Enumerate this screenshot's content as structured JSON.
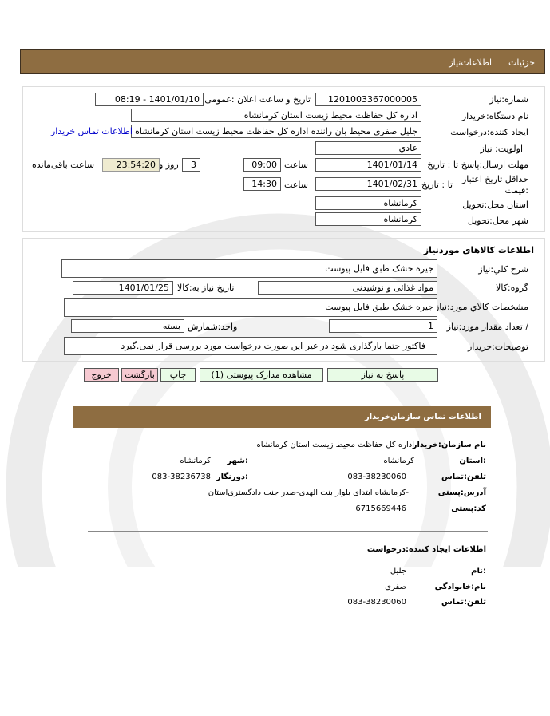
{
  "header": {
    "tab_details": "جزئیات",
    "tab_info": "اطلاعات‌نیاز"
  },
  "need": {
    "number_label": "شماره:نیاز",
    "number": "1201003367000005",
    "announce_label": "تاریخ و ساعت اعلان :عمومی",
    "announce": "1401/01/10 - 08:19",
    "buyer_label": "نام دستگاه:خریدار",
    "buyer": "اداره کل حفاظت محیط زیست استان کرمانشاه",
    "creator_label": "ایجاد کننده:درخواست",
    "creator": "جلیل  صفری محیط بان راننده اداره کل حفاظت محیط زیست استان کرمانشاه",
    "contact_link": "اطلاعات تماس خریدار",
    "priority_label": "اولویت: نیاز",
    "priority": "عادي",
    "deadline_label": "مهلت ارسال:پاسخ  تا : تاریخ",
    "deadline_date": "1401/01/14",
    "time_label": "ساعت",
    "deadline_time": "09:00",
    "days": "3",
    "days_label": "روز و",
    "remaining": "23:54:20",
    "remaining_label": "ساعت باقی‌مانده",
    "validity_label": "حداقل تاریخ اعتبار :قیمت",
    "validity_to": "تا : تاریخ",
    "validity_date": "1401/02/31",
    "validity_time": "14:30",
    "province_label": "استان محل:تحویل",
    "province": "کرمانشاه",
    "city_label": "شهر محل:تحویل",
    "city": "کرمانشاه"
  },
  "goods": {
    "title": "اطلاعات  کالاهاي موردنیاز",
    "desc_label": "شرح کلي:نیاز",
    "desc": "جیره خشک طبق فایل پیوست",
    "group_label": "گروه:کالا",
    "group": "مواد غذائی و نوشیدنی",
    "need_date_label": "تاریخ نیاز به:کالا",
    "need_date": "1401/01/25",
    "spec_label": "مشخصات کالاي مورد:نیاز",
    "spec": "جیره خشک طبق فایل پیوست",
    "qty_label": "/ تعداد مقدار مورد:نیاز",
    "qty": "1",
    "unit_label": "واحد:شمارش",
    "unit": "بسته",
    "notes_label": "توضیحات:خریدار",
    "notes": "فاکتور حتما بارگذاری شود در غیر این صورت درخواست مورد بررسی قرار نمی.گیرد"
  },
  "buttons": {
    "reply": "پاسخ به نیاز",
    "docs": "مشاهده مدارک پیوستی (1)",
    "print": "چاپ",
    "back": "بازگشت",
    "exit": "خروج"
  },
  "contact": {
    "title": "اطلاعات  تماس  سازمان‌خریدار",
    "org_label": "نام سازمان:خریدار",
    "org": "اداره کل حفاظت محیط زیست استان کرمانشاه",
    "province_label": ":استان",
    "province": "کرمانشاه",
    "city_label": ":شهر",
    "city": "کرمانشاه",
    "phone_label": "تلفن:تماس",
    "phone": "083-38230060",
    "fax_label": ":دورنگار",
    "fax": "083-38236738",
    "address_label": "آدرس:پستی",
    "address": "-کرمانشاه ابتدای بلوار بنت الهدی-صدر جنب دادگستری‌استان",
    "postal_label": "کد:پستی",
    "postal": "6715669446"
  },
  "creator": {
    "title": "اطلاعات ایجاد کننده:درخواست",
    "name_label": ":نام",
    "name": "جلیل",
    "family_label": "نام:خانوادگی",
    "family": "صفری",
    "phone_label": "تلفن:تماس",
    "phone": "083-38230060"
  },
  "colors": {
    "bar": "#8e6d41",
    "link": "#0000cc",
    "highlight": "#efebd0",
    "green_button": "#e8fbe6",
    "pink_button": "#f6c9d1"
  }
}
